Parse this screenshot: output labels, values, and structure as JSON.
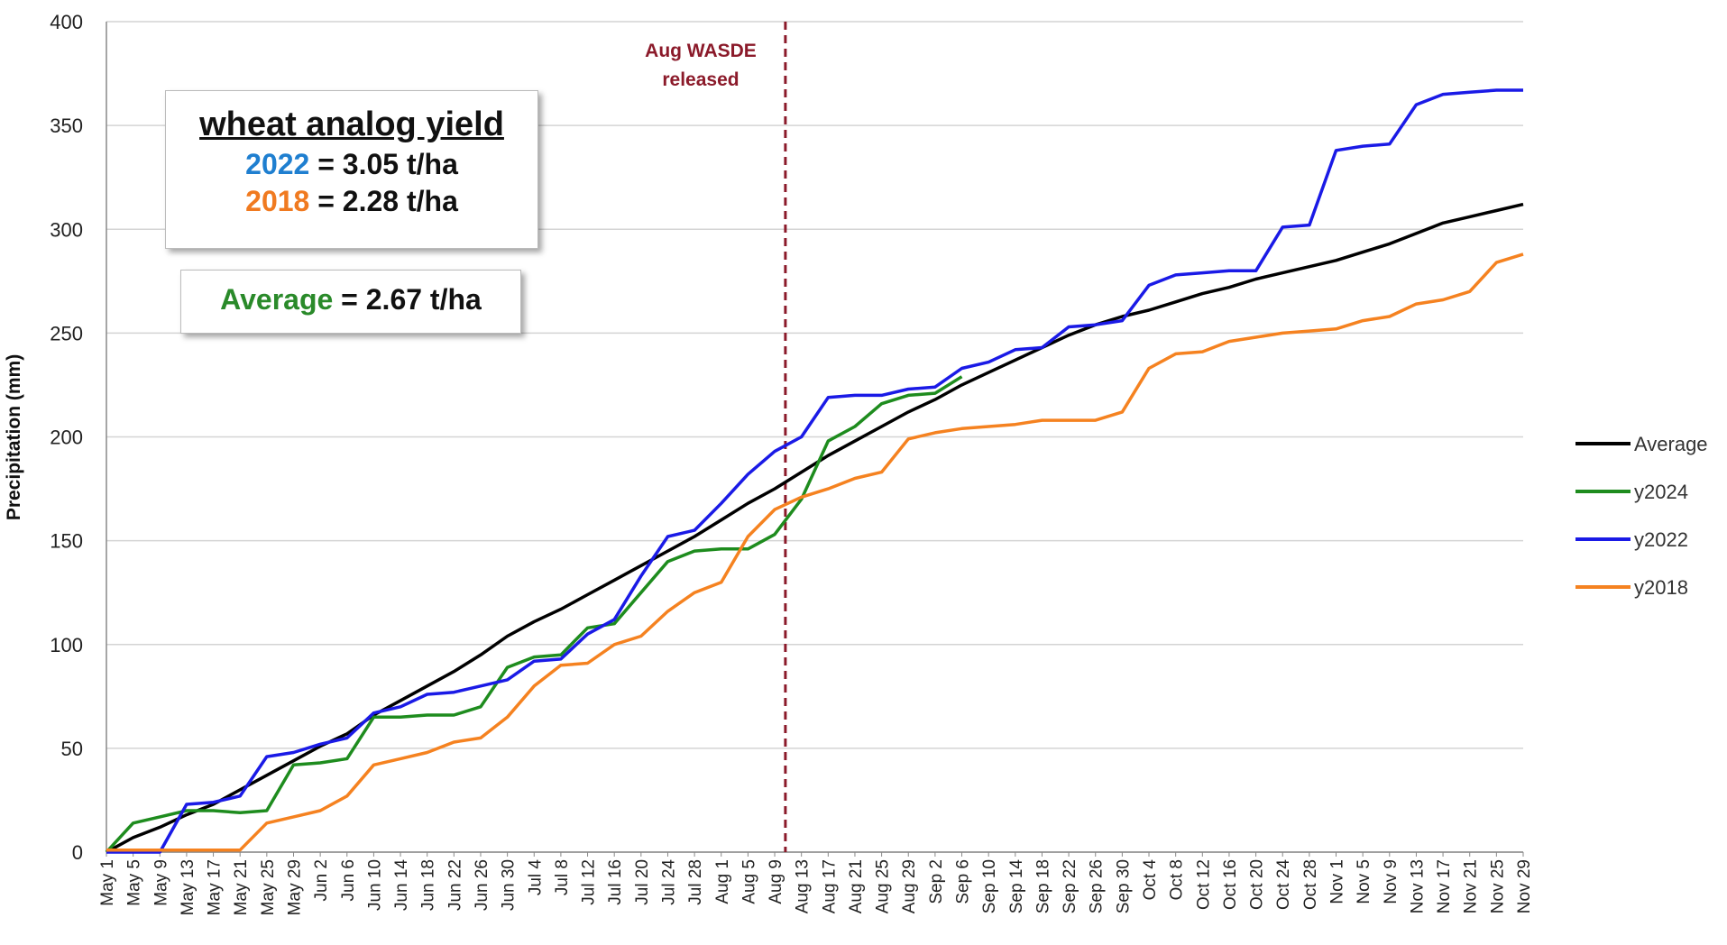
{
  "chart_data": {
    "type": "line",
    "ylabel": "Precipitation (mm)",
    "categories": [
      "May 1",
      "May 5",
      "May 9",
      "May 13",
      "May 17",
      "May 21",
      "May 25",
      "May 29",
      "Jun 2",
      "Jun 6",
      "Jun 10",
      "Jun 14",
      "Jun 18",
      "Jun 22",
      "Jun 26",
      "Jun 30",
      "Jul 4",
      "Jul 8",
      "Jul 12",
      "Jul 16",
      "Jul 20",
      "Jul 24",
      "Jul 28",
      "Aug 1",
      "Aug 5",
      "Aug 9",
      "Aug 13",
      "Aug 17",
      "Aug 21",
      "Aug 25",
      "Aug 29",
      "Sep 2",
      "Sep 6",
      "Sep 10",
      "Sep 14",
      "Sep 18",
      "Sep 22",
      "Sep 26",
      "Sep 30",
      "Oct 4",
      "Oct 8",
      "Oct 12",
      "Oct 16",
      "Oct 20",
      "Oct 24",
      "Oct 28",
      "Nov 1",
      "Nov 5",
      "Nov 9",
      "Nov 13",
      "Nov 17",
      "Nov 21",
      "Nov 25",
      "Nov 29"
    ],
    "series": [
      {
        "name": "Average",
        "color": "#000000",
        "values": [
          0,
          7,
          12,
          18,
          23,
          30,
          37,
          44,
          51,
          57,
          66,
          73,
          80,
          87,
          95,
          104,
          111,
          117,
          124,
          131,
          138,
          145,
          152,
          160,
          168,
          175,
          183,
          191,
          198,
          205,
          212,
          218,
          225,
          231,
          237,
          243,
          249,
          254,
          258,
          261,
          265,
          269,
          272,
          276,
          279,
          282,
          285,
          289,
          293,
          298,
          303,
          306,
          309,
          312
        ]
      },
      {
        "name": "y2024",
        "color": "#1e8c1e",
        "values": [
          0,
          14,
          17,
          20,
          20,
          19,
          20,
          42,
          43,
          45,
          65,
          65,
          66,
          66,
          70,
          89,
          94,
          95,
          108,
          110,
          125,
          140,
          145,
          146,
          146,
          153,
          170,
          198,
          205,
          216,
          220,
          221,
          229,
          null,
          null,
          null,
          null,
          null,
          null,
          null,
          null,
          null,
          null,
          null,
          null,
          null,
          null,
          null,
          null,
          null,
          null,
          null,
          null,
          null
        ]
      },
      {
        "name": "y2022",
        "color": "#1a1ae6",
        "values": [
          0,
          0,
          0,
          23,
          24,
          27,
          46,
          48,
          52,
          55,
          67,
          70,
          76,
          77,
          80,
          83,
          92,
          93,
          105,
          112,
          133,
          152,
          155,
          168,
          182,
          193,
          200,
          219,
          220,
          220,
          223,
          224,
          233,
          236,
          242,
          243,
          253,
          254,
          256,
          273,
          278,
          279,
          280,
          280,
          301,
          302,
          338,
          340,
          341,
          360,
          365,
          366,
          367,
          367
        ]
      },
      {
        "name": "y2018",
        "color": "#f58220",
        "values": [
          1,
          1,
          1,
          1,
          1,
          1,
          14,
          17,
          20,
          27,
          42,
          45,
          48,
          53,
          55,
          65,
          80,
          90,
          91,
          100,
          104,
          116,
          125,
          130,
          152,
          165,
          171,
          175,
          180,
          183,
          199,
          202,
          204,
          205,
          206,
          208,
          208,
          208,
          212,
          233,
          240,
          241,
          246,
          248,
          250,
          251,
          252,
          256,
          258,
          264,
          266,
          270,
          284,
          288
        ]
      }
    ],
    "ylim": [
      0,
      400
    ],
    "yticks": [
      0,
      50,
      100,
      150,
      200,
      250,
      300,
      350,
      400
    ],
    "grid": true,
    "legend": "right",
    "annotation": [
      "Aug WASDE",
      "released"
    ],
    "boxes": {
      "title": "wheat analog yield",
      "lines": [
        {
          "year": "2022",
          "text": "= 3.05 t/ha"
        },
        {
          "year": "2018",
          "text": "= 2.28 t/ha"
        }
      ],
      "average": {
        "name": "Average",
        "text": "= 2.67 t/ha"
      }
    }
  }
}
